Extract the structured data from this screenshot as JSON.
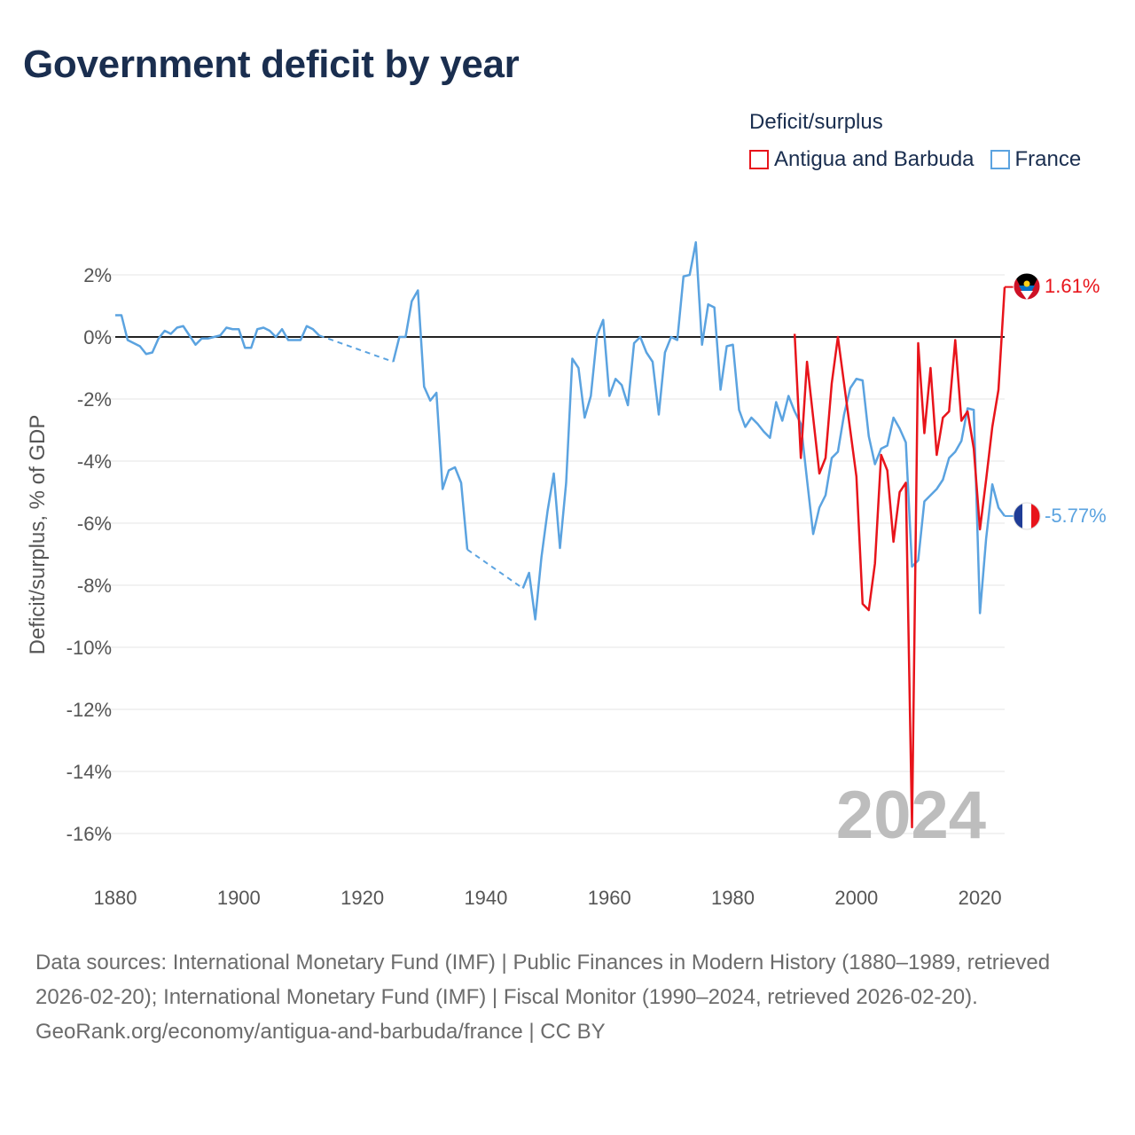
{
  "title": "Government deficit by year",
  "legend": {
    "title": "Deficit/surplus",
    "items": [
      {
        "label": "Antigua and Barbuda",
        "color": "#e8141b"
      },
      {
        "label": "France",
        "color": "#5ba3e0"
      }
    ]
  },
  "footer": {
    "sources": "Data sources: International Monetary Fund (IMF) | Public Finances in Modern History (1880–1989, retrieved 2026-02-20); International Monetary Fund (IMF) | Fiscal Monitor (1990–2024, retrieved 2026-02-20).",
    "credit": "GeoRank.org/economy/antigua-and-barbuda/france | CC BY"
  },
  "chart_data": {
    "type": "line",
    "title": "Government deficit by year",
    "xlabel": "",
    "ylabel": "Deficit/surplus, % of GDP",
    "xlim": [
      1880,
      2024
    ],
    "ylim": [
      -16.5,
      3.3
    ],
    "xticks": [
      1880,
      1900,
      1920,
      1940,
      1960,
      1980,
      2000,
      2020
    ],
    "xtick_labels": [
      "1880",
      "1900",
      "1920",
      "1940",
      "1960",
      "1980",
      "2000",
      "2020"
    ],
    "yticks": [
      2,
      0,
      -2,
      -4,
      -6,
      -8,
      -10,
      -12,
      -14,
      -16
    ],
    "ytick_labels": [
      "2%",
      "0%",
      "-2%",
      "-4%",
      "-6%",
      "-8%",
      "-10%",
      "-12%",
      "-14%",
      "-16%"
    ],
    "year_watermark": "2024",
    "series": [
      {
        "name": "Antigua and Barbuda",
        "color": "#e8141b",
        "end_label": "1.61%",
        "flag": "antigua",
        "segments": [
          [
            [
              1990,
              0.1
            ],
            [
              1991,
              -3.9
            ],
            [
              1992,
              -0.8
            ],
            [
              1993,
              -2.6
            ],
            [
              1994,
              -4.4
            ],
            [
              1995,
              -3.9
            ],
            [
              1996,
              -1.5
            ],
            [
              1997,
              0.0
            ],
            [
              1998,
              -1.5
            ],
            [
              1999,
              -3.0
            ],
            [
              2000,
              -4.5
            ],
            [
              2001,
              -8.6
            ],
            [
              2002,
              -8.8
            ],
            [
              2003,
              -7.3
            ],
            [
              2004,
              -3.8
            ],
            [
              2005,
              -4.3
            ],
            [
              2006,
              -6.6
            ],
            [
              2007,
              -5.0
            ],
            [
              2008,
              -4.7
            ],
            [
              2009,
              -15.8
            ],
            [
              2010,
              -0.2
            ],
            [
              2011,
              -3.1
            ],
            [
              2012,
              -1.0
            ],
            [
              2013,
              -3.8
            ],
            [
              2014,
              -2.6
            ],
            [
              2015,
              -2.4
            ],
            [
              2016,
              -0.1
            ],
            [
              2017,
              -2.7
            ],
            [
              2018,
              -2.4
            ],
            [
              2019,
              -3.6
            ],
            [
              2020,
              -6.2
            ],
            [
              2021,
              -4.6
            ],
            [
              2022,
              -2.9
            ],
            [
              2023,
              -1.7
            ],
            [
              2024,
              1.61
            ]
          ]
        ],
        "dashed_segments": []
      },
      {
        "name": "France",
        "color": "#5ba3e0",
        "end_label": "-5.77%",
        "flag": "france",
        "segments": [
          [
            [
              1880,
              0.7
            ],
            [
              1881,
              0.7
            ],
            [
              1882,
              -0.1
            ],
            [
              1883,
              -0.2
            ],
            [
              1884,
              -0.3
            ],
            [
              1885,
              -0.55
            ],
            [
              1886,
              -0.5
            ],
            [
              1887,
              -0.05
            ],
            [
              1888,
              0.2
            ],
            [
              1889,
              0.1
            ],
            [
              1890,
              0.3
            ],
            [
              1891,
              0.35
            ],
            [
              1892,
              0.05
            ],
            [
              1893,
              -0.25
            ],
            [
              1894,
              -0.05
            ],
            [
              1895,
              -0.05
            ],
            [
              1896,
              0.0
            ],
            [
              1897,
              0.05
            ],
            [
              1898,
              0.3
            ],
            [
              1899,
              0.25
            ],
            [
              1900,
              0.25
            ],
            [
              1901,
              -0.35
            ],
            [
              1902,
              -0.35
            ],
            [
              1903,
              0.25
            ],
            [
              1904,
              0.3
            ],
            [
              1905,
              0.2
            ],
            [
              1906,
              0.0
            ],
            [
              1907,
              0.25
            ],
            [
              1908,
              -0.1
            ],
            [
              1909,
              -0.1
            ],
            [
              1910,
              -0.1
            ],
            [
              1911,
              0.35
            ],
            [
              1912,
              0.25
            ],
            [
              1913,
              0.05
            ]
          ],
          [
            [
              1925,
              -0.8
            ],
            [
              1926,
              0.0
            ],
            [
              1927,
              0.0
            ],
            [
              1928,
              1.15
            ],
            [
              1929,
              1.5
            ],
            [
              1930,
              -1.6
            ],
            [
              1931,
              -2.05
            ],
            [
              1932,
              -1.8
            ],
            [
              1933,
              -4.9
            ],
            [
              1934,
              -4.3
            ],
            [
              1935,
              -4.2
            ],
            [
              1936,
              -4.7
            ],
            [
              1937,
              -6.85
            ]
          ],
          [
            [
              1946,
              -8.1
            ],
            [
              1947,
              -7.6
            ],
            [
              1948,
              -9.1
            ],
            [
              1949,
              -7.1
            ],
            [
              1950,
              -5.6
            ],
            [
              1951,
              -4.4
            ],
            [
              1952,
              -6.8
            ],
            [
              1953,
              -4.7
            ],
            [
              1954,
              -0.7
            ],
            [
              1955,
              -1.0
            ],
            [
              1956,
              -2.6
            ],
            [
              1957,
              -1.9
            ],
            [
              1958,
              0.05
            ],
            [
              1959,
              0.55
            ],
            [
              1960,
              -1.9
            ],
            [
              1961,
              -1.35
            ],
            [
              1962,
              -1.55
            ],
            [
              1963,
              -2.2
            ],
            [
              1964,
              -0.2
            ],
            [
              1965,
              0.0
            ],
            [
              1966,
              -0.5
            ],
            [
              1967,
              -0.8
            ],
            [
              1968,
              -2.5
            ],
            [
              1969,
              -0.5
            ],
            [
              1970,
              0.0
            ],
            [
              1971,
              -0.1
            ],
            [
              1972,
              1.95
            ],
            [
              1973,
              2.0
            ],
            [
              1974,
              3.05
            ],
            [
              1975,
              -0.25
            ],
            [
              1976,
              1.05
            ],
            [
              1977,
              0.95
            ],
            [
              1978,
              -1.7
            ],
            [
              1979,
              -0.3
            ],
            [
              1980,
              -0.25
            ],
            [
              1981,
              -2.35
            ],
            [
              1982,
              -2.9
            ],
            [
              1983,
              -2.6
            ],
            [
              1984,
              -2.8
            ],
            [
              1985,
              -3.05
            ],
            [
              1986,
              -3.25
            ],
            [
              1987,
              -2.1
            ],
            [
              1988,
              -2.7
            ],
            [
              1989,
              -1.9
            ],
            [
              1990,
              -2.4
            ],
            [
              1991,
              -2.8
            ],
            [
              1992,
              -4.6
            ],
            [
              1993,
              -6.35
            ],
            [
              1994,
              -5.5
            ],
            [
              1995,
              -5.1
            ],
            [
              1996,
              -3.9
            ],
            [
              1997,
              -3.7
            ],
            [
              1998,
              -2.5
            ],
            [
              1999,
              -1.65
            ],
            [
              2000,
              -1.35
            ],
            [
              2001,
              -1.4
            ],
            [
              2002,
              -3.2
            ],
            [
              2003,
              -4.1
            ],
            [
              2004,
              -3.6
            ],
            [
              2005,
              -3.5
            ],
            [
              2006,
              -2.6
            ],
            [
              2007,
              -2.95
            ],
            [
              2008,
              -3.4
            ],
            [
              2009,
              -7.4
            ],
            [
              2010,
              -7.2
            ],
            [
              2011,
              -5.3
            ],
            [
              2012,
              -5.1
            ],
            [
              2013,
              -4.9
            ],
            [
              2014,
              -4.6
            ],
            [
              2015,
              -3.9
            ],
            [
              2016,
              -3.7
            ],
            [
              2017,
              -3.35
            ],
            [
              2018,
              -2.3
            ],
            [
              2019,
              -2.35
            ],
            [
              2020,
              -8.9
            ],
            [
              2021,
              -6.5
            ],
            [
              2022,
              -4.75
            ],
            [
              2023,
              -5.5
            ],
            [
              2024,
              -5.77
            ]
          ]
        ],
        "dashed_segments": [
          [
            [
              1913,
              0.05
            ],
            [
              1925,
              -0.8
            ]
          ],
          [
            [
              1937,
              -6.85
            ],
            [
              1946,
              -8.1
            ]
          ]
        ]
      }
    ]
  }
}
